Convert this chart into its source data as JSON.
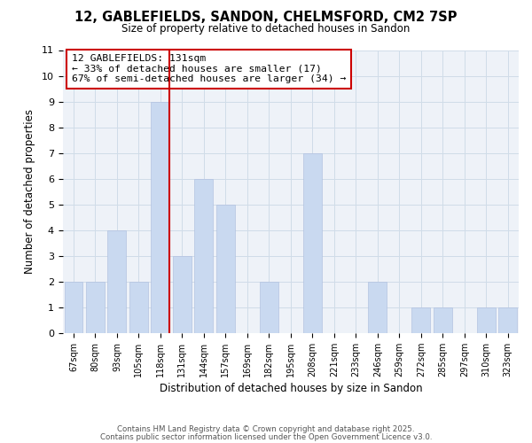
{
  "title_line1": "12, GABLEFIELDS, SANDON, CHELMSFORD, CM2 7SP",
  "title_line2": "Size of property relative to detached houses in Sandon",
  "xlabel": "Distribution of detached houses by size in Sandon",
  "ylabel": "Number of detached properties",
  "categories": [
    "67sqm",
    "80sqm",
    "93sqm",
    "105sqm",
    "118sqm",
    "131sqm",
    "144sqm",
    "157sqm",
    "169sqm",
    "182sqm",
    "195sqm",
    "208sqm",
    "221sqm",
    "233sqm",
    "246sqm",
    "259sqm",
    "272sqm",
    "285sqm",
    "297sqm",
    "310sqm",
    "323sqm"
  ],
  "values": [
    2,
    2,
    4,
    2,
    9,
    3,
    6,
    5,
    0,
    2,
    0,
    7,
    0,
    0,
    2,
    0,
    1,
    1,
    0,
    1,
    1
  ],
  "highlight_index": 4,
  "bar_color": "#c9d9f0",
  "highlight_line_color": "#cc0000",
  "ylim": [
    0,
    11
  ],
  "yticks": [
    0,
    1,
    2,
    3,
    4,
    5,
    6,
    7,
    8,
    9,
    10,
    11
  ],
  "annotation_title": "12 GABLEFIELDS: 131sqm",
  "annotation_line1": "← 33% of detached houses are smaller (17)",
  "annotation_line2": "67% of semi-detached houses are larger (34) →",
  "footer_line1": "Contains HM Land Registry data © Crown copyright and database right 2025.",
  "footer_line2": "Contains public sector information licensed under the Open Government Licence v3.0.",
  "grid_color": "#d0dce8",
  "background_color": "#eef2f8"
}
